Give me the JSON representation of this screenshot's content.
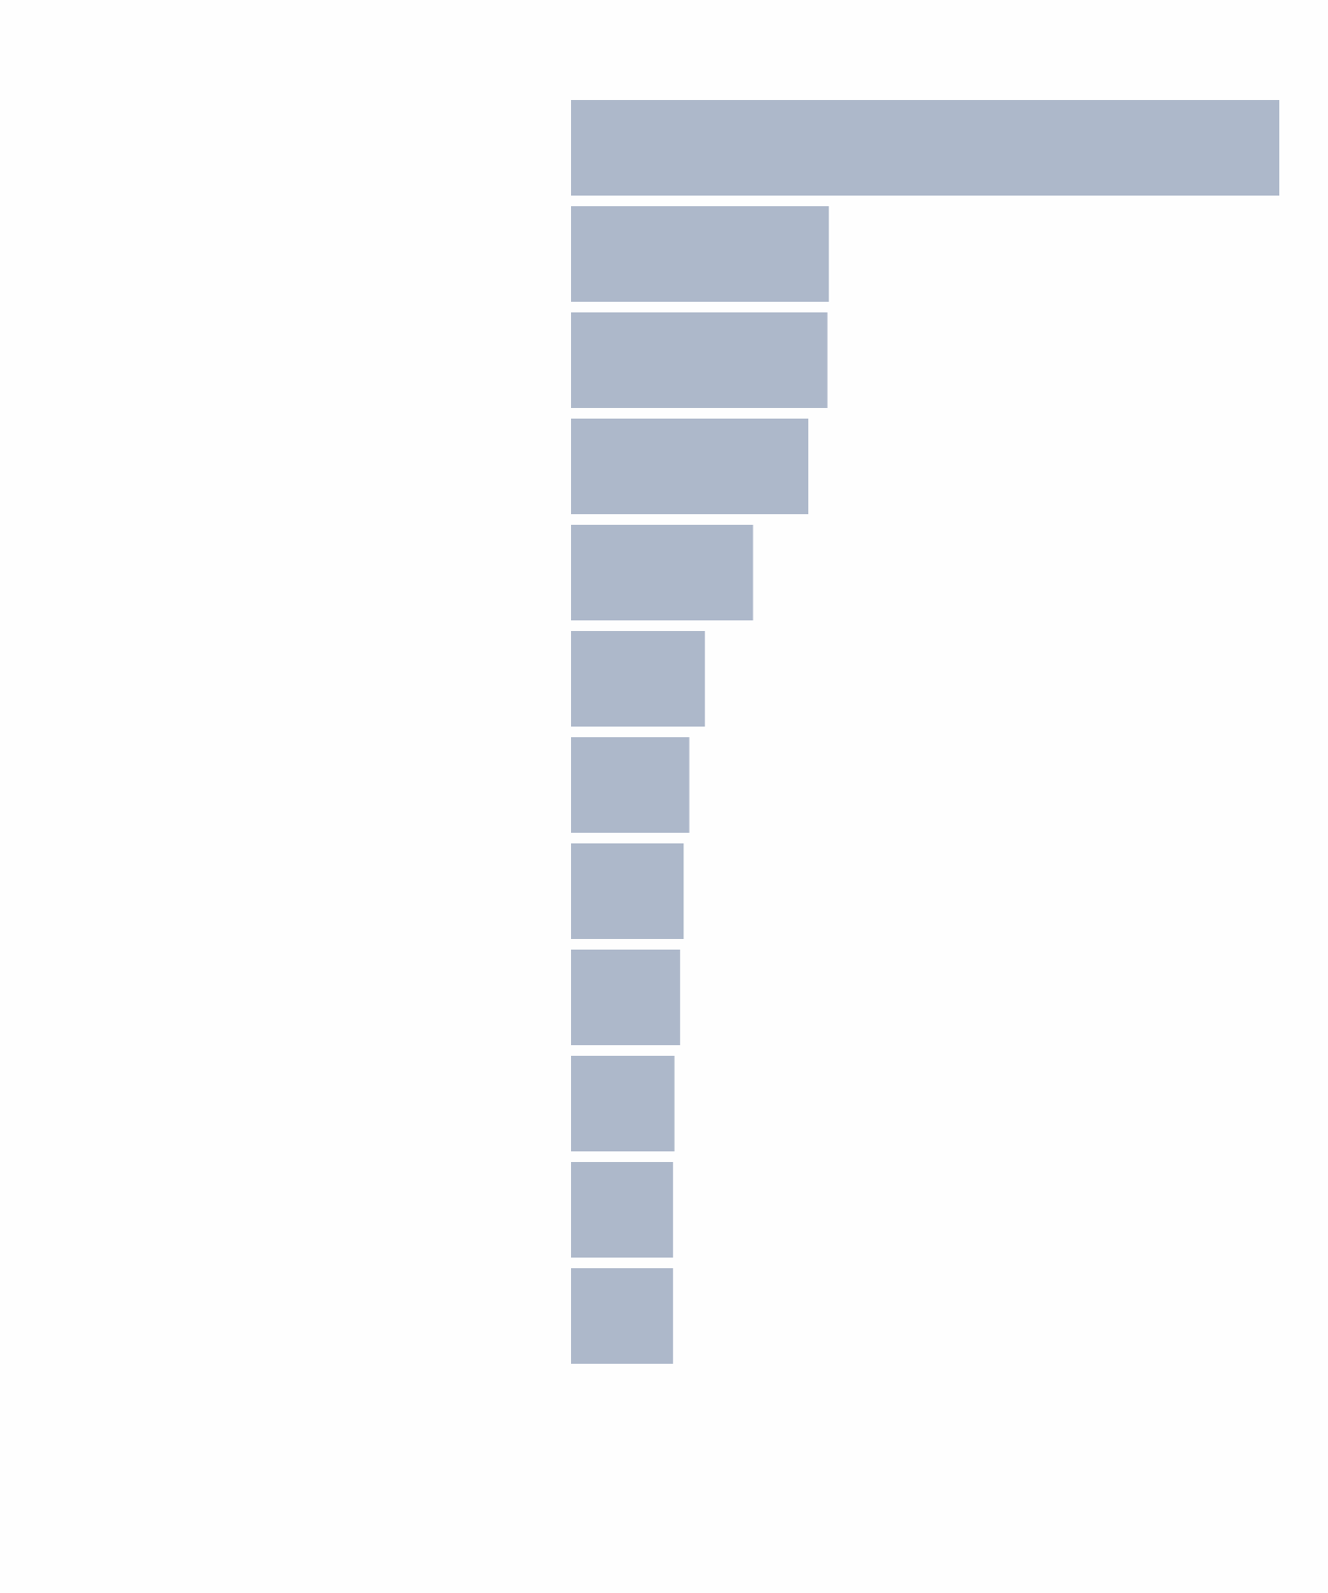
{
  "chart_data": {
    "type": "barh",
    "categories": [
      null,
      null,
      null,
      null,
      null,
      null,
      null,
      null,
      null,
      null,
      null,
      null
    ],
    "values": [
      100,
      36.4,
      36.2,
      33.5,
      25.7,
      18.9,
      16.7,
      15.9,
      15.4,
      14.6,
      14.4,
      14.4
    ],
    "color": "#adb8ca",
    "xlim": [
      0,
      100
    ]
  }
}
